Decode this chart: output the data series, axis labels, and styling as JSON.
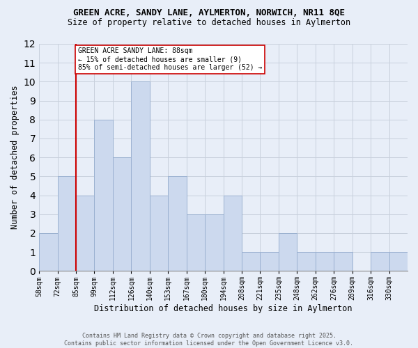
{
  "title_line1": "GREEN ACRE, SANDY LANE, AYLMERTON, NORWICH, NR11 8QE",
  "title_line2": "Size of property relative to detached houses in Aylmerton",
  "xlabel": "Distribution of detached houses by size in Aylmerton",
  "ylabel": "Number of detached properties",
  "categories": [
    "58sqm",
    "72sqm",
    "85sqm",
    "99sqm",
    "112sqm",
    "126sqm",
    "140sqm",
    "153sqm",
    "167sqm",
    "180sqm",
    "194sqm",
    "208sqm",
    "221sqm",
    "235sqm",
    "248sqm",
    "262sqm",
    "276sqm",
    "289sqm",
    "316sqm",
    "330sqm"
  ],
  "values": [
    2,
    5,
    4,
    8,
    6,
    10,
    4,
    5,
    3,
    3,
    4,
    1,
    1,
    2,
    1,
    1,
    1,
    0,
    1,
    1
  ],
  "bar_color": "#ccd9ee",
  "bar_edge_color": "#9ab0d0",
  "grid_color": "#c8d0dc",
  "background_color": "#e8eef8",
  "property_line_color": "#cc0000",
  "property_line_bin": 2,
  "annotation_text": "GREEN ACRE SANDY LANE: 88sqm\n← 15% of detached houses are smaller (9)\n85% of semi-detached houses are larger (52) →",
  "annotation_box_color": "#ffffff",
  "annotation_box_edge": "#cc0000",
  "footer_text": "Contains HM Land Registry data © Crown copyright and database right 2025.\nContains public sector information licensed under the Open Government Licence v3.0.",
  "ylim": [
    0,
    12
  ],
  "yticks": [
    0,
    1,
    2,
    3,
    4,
    5,
    6,
    7,
    8,
    9,
    10,
    11,
    12
  ],
  "title_fontsize": 9,
  "subtitle_fontsize": 8.5,
  "ylabel_fontsize": 8.5,
  "xlabel_fontsize": 8.5,
  "tick_fontsize": 7,
  "footer_fontsize": 6,
  "annot_fontsize": 7
}
